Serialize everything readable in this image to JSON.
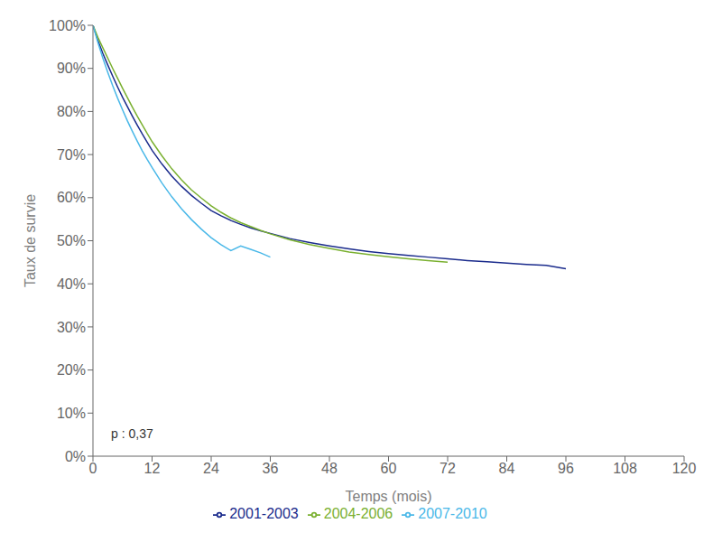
{
  "chart_data": {
    "type": "line",
    "xlabel": "Temps (mois)",
    "ylabel": "Taux de survie",
    "annotation": "p : 0,37",
    "xlim": [
      0,
      120
    ],
    "ylim": [
      0,
      1.0
    ],
    "xticks": [
      0,
      12,
      24,
      36,
      48,
      60,
      72,
      84,
      96,
      108,
      120
    ],
    "yticks": [
      {
        "value": 0.0,
        "label": "0%"
      },
      {
        "value": 0.1,
        "label": "10%"
      },
      {
        "value": 0.2,
        "label": "20%"
      },
      {
        "value": 0.3,
        "label": "30%"
      },
      {
        "value": 0.4,
        "label": "40%"
      },
      {
        "value": 0.5,
        "label": "50%"
      },
      {
        "value": 0.6,
        "label": "60%"
      },
      {
        "value": 0.7,
        "label": "70%"
      },
      {
        "value": 0.8,
        "label": "80%"
      },
      {
        "value": 0.9,
        "label": "90%"
      },
      {
        "value": 1.0,
        "label": "100%"
      }
    ],
    "grid": false,
    "legend": "bottom",
    "series": [
      {
        "name": "2001-2003",
        "color": "#1a2b8c",
        "x": [
          0,
          1,
          2,
          3,
          4,
          5,
          6,
          7,
          8,
          9,
          10,
          11,
          12,
          14,
          16,
          18,
          20,
          22,
          24,
          26,
          28,
          30,
          32,
          34,
          36,
          40,
          44,
          48,
          52,
          56,
          60,
          64,
          68,
          72,
          76,
          80,
          84,
          88,
          92,
          96
        ],
        "values": [
          1.0,
          0.965,
          0.935,
          0.908,
          0.882,
          0.857,
          0.833,
          0.811,
          0.789,
          0.768,
          0.748,
          0.729,
          0.71,
          0.678,
          0.65,
          0.626,
          0.605,
          0.587,
          0.57,
          0.558,
          0.547,
          0.538,
          0.53,
          0.523,
          0.517,
          0.505,
          0.496,
          0.488,
          0.481,
          0.475,
          0.47,
          0.466,
          0.462,
          0.458,
          0.454,
          0.451,
          0.448,
          0.445,
          0.443,
          0.435
        ]
      },
      {
        "name": "2004-2006",
        "color": "#7ab030",
        "x": [
          0,
          1,
          2,
          3,
          4,
          5,
          6,
          7,
          8,
          9,
          10,
          11,
          12,
          14,
          16,
          18,
          20,
          22,
          24,
          26,
          28,
          30,
          32,
          34,
          36,
          40,
          44,
          48,
          52,
          56,
          60,
          64,
          68,
          72
        ],
        "values": [
          1.0,
          0.972,
          0.948,
          0.924,
          0.9,
          0.877,
          0.854,
          0.832,
          0.81,
          0.789,
          0.769,
          0.749,
          0.73,
          0.697,
          0.667,
          0.641,
          0.618,
          0.599,
          0.581,
          0.566,
          0.553,
          0.542,
          0.533,
          0.524,
          0.516,
          0.502,
          0.491,
          0.482,
          0.474,
          0.468,
          0.463,
          0.458,
          0.454,
          0.45
        ]
      },
      {
        "name": "2007-2010",
        "color": "#4ab8e8",
        "x": [
          0,
          1,
          2,
          3,
          4,
          5,
          6,
          7,
          8,
          9,
          10,
          11,
          12,
          14,
          16,
          18,
          20,
          22,
          24,
          26,
          28,
          30,
          32,
          34,
          36
        ],
        "values": [
          1.0,
          0.96,
          0.924,
          0.891,
          0.86,
          0.831,
          0.804,
          0.778,
          0.754,
          0.731,
          0.709,
          0.689,
          0.67,
          0.634,
          0.602,
          0.574,
          0.549,
          0.527,
          0.507,
          0.491,
          0.477,
          0.488,
          0.48,
          0.472,
          0.462
        ]
      }
    ]
  }
}
